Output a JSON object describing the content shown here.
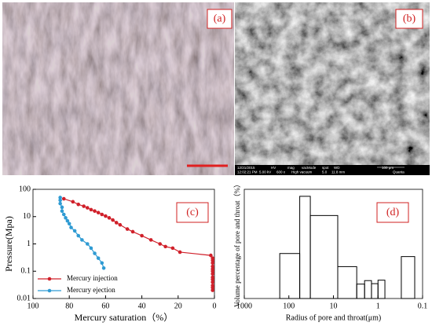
{
  "images": [
    {
      "label": "(a)"
    },
    {
      "label": "(b)",
      "info_top": [
        "12/21/2015",
        "HV",
        "mag",
        "vacMode",
        "spot",
        "WD",
        "100 μm"
      ],
      "info_bottom": [
        "12:02:21 PM",
        "5.00 kV",
        "600 x",
        "High vacuum",
        "5.0",
        "11.8 mm",
        "Quanta"
      ]
    }
  ],
  "chart_data": [
    {
      "type": "line",
      "label": "(c)",
      "x_label": "Mercury saturation（%）",
      "y_label": "Pressure(Mpa)",
      "xlim": [
        100,
        0
      ],
      "xticks": [
        100,
        80,
        60,
        40,
        20,
        0
      ],
      "ylim": [
        0.01,
        100
      ],
      "yticks": [
        0.01,
        0.1,
        1,
        10,
        100
      ],
      "y_log": true,
      "legend": "lower left",
      "series": [
        {
          "name": "Mercury injection",
          "color": "#d0202a",
          "x": [
            83,
            78,
            75,
            72,
            70,
            68,
            66,
            64,
            62,
            60,
            58,
            56,
            54,
            52,
            48,
            45,
            40,
            35,
            30,
            27,
            23,
            19,
            2,
            1,
            1,
            1,
            1,
            1,
            1,
            1,
            1,
            1,
            1,
            1,
            1,
            1
          ],
          "values": [
            45,
            35,
            28,
            24,
            21,
            18,
            16,
            14,
            12,
            10.5,
            9,
            7.5,
            6,
            5,
            3.5,
            2.8,
            2,
            1.4,
            1,
            0.8,
            0.7,
            0.5,
            0.38,
            0.3,
            0.25,
            0.2,
            0.15,
            0.12,
            0.1,
            0.08,
            0.06,
            0.05,
            0.04,
            0.03,
            0.025,
            0.02
          ]
        },
        {
          "name": "Mercury ejection",
          "color": "#2f9bd3",
          "x": [
            85,
            85,
            85,
            84,
            84,
            83,
            82,
            81,
            80,
            79,
            77,
            75,
            73,
            70,
            68,
            66,
            64,
            62,
            61
          ],
          "values": [
            50,
            40,
            30,
            22,
            16,
            12,
            9,
            7,
            5.5,
            4,
            3,
            2,
            1.4,
            1,
            0.7,
            0.45,
            0.3,
            0.2,
            0.13
          ]
        }
      ]
    },
    {
      "type": "histogram",
      "label": "(d)",
      "x_label": "Radius of pore and throat(μm)",
      "y_label": "Volume percentage of pore and throat（%）",
      "xlim": [
        1000,
        0.1
      ],
      "xticks": [
        1000,
        100,
        10,
        1,
        0.1
      ],
      "x_log": true,
      "ylim": [
        0,
        25
      ],
      "bins": [
        160,
        57,
        33,
        8,
        3,
        2,
        1.4,
        1,
        0.7,
        0.3,
        0.15
      ],
      "values": [
        10.3,
        23.4,
        19,
        7.3,
        3.3,
        4.1,
        3.4,
        4.2,
        0,
        9.6
      ]
    }
  ]
}
